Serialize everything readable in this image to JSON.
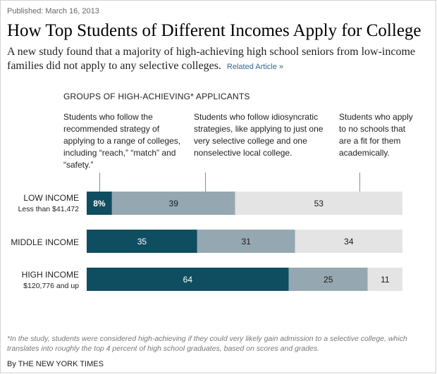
{
  "published": "Published: March 16, 2013",
  "headline": "How Top Students of Different Incomes Apply for College",
  "summary": "A new study found that a majority of high-achieving high school seniors from low-income families did not apply to any selective colleges.",
  "related_link": "Related Article »",
  "notes": [
    "Students who follow the recommended strategy of applying to a range of colleges, including “reach,” “match” and “safety.”",
    "Students who follow idiosyncratic strategies, like applying to just one very selective college and one nonselective local college.",
    "Students who apply to no schools that are a fit for them academically."
  ],
  "footnote": "*In the study, students were considered high-achieving if they could very likely gain admission to a selective college, which translates into roughly the top 4 percent of high school graduates, based on scores and grades.",
  "credit": "By THE NEW YORK TIMES",
  "chart_data": {
    "type": "bar",
    "orientation": "horizontal",
    "stacked": true,
    "title": "GROUPS OF HIGH-ACHIEVING* APPLICANTS",
    "categories": [
      {
        "label": "LOW INCOME",
        "sublabel": "Less than $41,472"
      },
      {
        "label": "MIDDLE INCOME",
        "sublabel": ""
      },
      {
        "label": "HIGH INCOME",
        "sublabel": "$120,776 and up"
      }
    ],
    "series": [
      {
        "values": [
          8,
          35,
          64
        ],
        "labels": [
          "8%",
          "35",
          "64"
        ],
        "color": "#0f4d61",
        "text_color": "#ffffff"
      },
      {
        "values": [
          39,
          31,
          25
        ],
        "labels": [
          "39",
          "31",
          "25"
        ],
        "color": "#95a8b1",
        "text_color": "#1a1a1a"
      },
      {
        "values": [
          53,
          34,
          11
        ],
        "labels": [
          "53",
          "34",
          "11"
        ],
        "color": "#e4e4e4",
        "text_color": "#1a1a1a"
      }
    ],
    "xlim": [
      0,
      100
    ],
    "unit": "percent",
    "grid": false,
    "legend": "none"
  }
}
